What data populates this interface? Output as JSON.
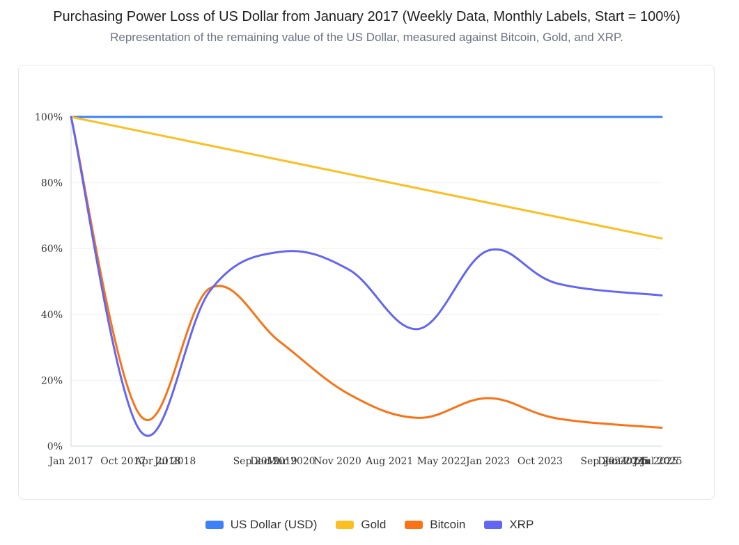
{
  "chart_data": {
    "type": "line",
    "title": "Purchasing Power Loss of US Dollar from January 2017 (Weekly Data, Monthly Labels, Start = 100%)",
    "subtitle": "Representation of the remaining value of the US Dollar, measured against Bitcoin, Gold, and XRP.",
    "xlabel": "",
    "ylabel": "",
    "ylim": [
      0,
      100
    ],
    "y_ticks": [
      "0%",
      "20%",
      "40%",
      "60%",
      "80%",
      "100%"
    ],
    "y_tick_values": [
      0,
      20,
      40,
      60,
      80,
      100
    ],
    "x_range": [
      "2017-01",
      "2025-07"
    ],
    "x_ticks": [
      {
        "label": "Jan 2017",
        "date": "2017-01"
      },
      {
        "label": "Oct 2017",
        "date": "2017-10"
      },
      {
        "label": "Apr 2018",
        "date": "2018-04"
      },
      {
        "label": "Jul 2018",
        "date": "2018-07"
      },
      {
        "label": "Sep 2019",
        "date": "2019-09"
      },
      {
        "label": "Dec 2019",
        "date": "2019-12"
      },
      {
        "label": "Mar 2020",
        "date": "2020-03"
      },
      {
        "label": "Nov 2020",
        "date": "2020-11"
      },
      {
        "label": "Aug 2021",
        "date": "2021-08"
      },
      {
        "label": "May 2022",
        "date": "2022-05"
      },
      {
        "label": "Jan 2023",
        "date": "2023-01"
      },
      {
        "label": "Oct 2023",
        "date": "2023-10"
      },
      {
        "label": "Sep 2024",
        "date": "2024-09"
      },
      {
        "label": "Dec 2024",
        "date": "2024-12"
      },
      {
        "label": "Jan 2025",
        "date": "2025-01"
      },
      {
        "label": "Jun 2025",
        "date": "2025-06"
      },
      {
        "label": "Jul 2025",
        "date": "2025-07"
      }
    ],
    "grid": true,
    "legend_position": "bottom",
    "series": [
      {
        "name": "US Dollar (USD)",
        "color": "#3b82f6",
        "smooth": false,
        "points": [
          [
            "2017-01",
            100
          ],
          [
            "2025-07",
            100
          ]
        ]
      },
      {
        "name": "Gold",
        "color": "#fbbf24",
        "smooth": false,
        "points": [
          [
            "2017-01",
            100
          ],
          [
            "2025-07",
            63.1
          ]
        ]
      },
      {
        "name": "Bitcoin",
        "color": "#f97316",
        "smooth": true,
        "points": [
          [
            "2017-01",
            100
          ],
          [
            "2018-01",
            9.2
          ],
          [
            "2019-01",
            48
          ],
          [
            "2020-01",
            31.8
          ],
          [
            "2021-01",
            15.8
          ],
          [
            "2022-01",
            8.6
          ],
          [
            "2023-01",
            14.6
          ],
          [
            "2024-01",
            8.4
          ],
          [
            "2025-07",
            5.6
          ]
        ]
      },
      {
        "name": "XRP",
        "color": "#6366f1",
        "smooth": true,
        "points": [
          [
            "2017-01",
            100
          ],
          [
            "2018-01",
            4.5
          ],
          [
            "2019-01",
            47.2
          ],
          [
            "2020-01",
            59
          ],
          [
            "2021-01",
            53.6
          ],
          [
            "2022-01",
            35.6
          ],
          [
            "2023-01",
            59.4
          ],
          [
            "2024-01",
            49.4
          ],
          [
            "2025-07",
            45.8
          ]
        ]
      }
    ]
  }
}
